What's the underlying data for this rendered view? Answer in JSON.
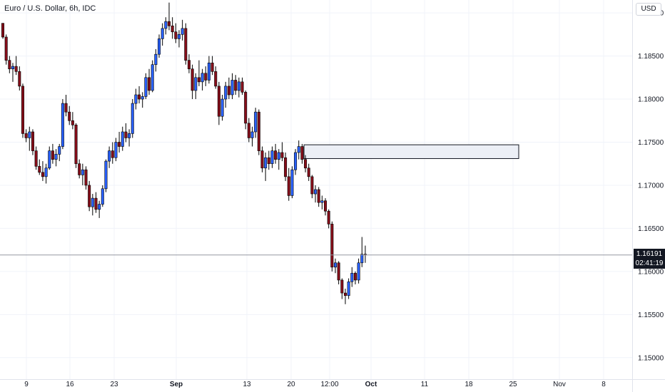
{
  "header": {
    "title": "Euro / U.S. Dollar, 6h, IDC",
    "currency": "USD"
  },
  "last_price": {
    "price": "1.16191",
    "countdown": "02:41:19"
  },
  "colors": {
    "up": "#2962ff",
    "down": "#880e1a",
    "wick": "#000000",
    "grid": "#f0f3fa",
    "zone_fill": "#eceff6",
    "zone_border": "#131722",
    "price_line": "#9598a1"
  },
  "chart_data": {
    "type": "candlestick",
    "title": "Euro / U.S. Dollar, 6h, IDC",
    "xlabel": "",
    "ylabel": "",
    "y_axis_side": "right",
    "ylim": [
      1.1475,
      1.1915
    ],
    "y_ticks": [
      1.15,
      1.155,
      1.16,
      1.165,
      1.17,
      1.175,
      1.18,
      1.185,
      1.19
    ],
    "y_tick_labels": [
      "1.15000",
      "1.15500",
      "1.16000",
      "1.16500",
      "1.17000",
      "1.17500",
      "1.18000",
      "1.18500",
      "1.19000"
    ],
    "x_tick_labels": [
      "9",
      "16",
      "23",
      "Sep",
      "13",
      "20",
      "12:00",
      "Oct",
      "11",
      "18",
      "25",
      "Nov",
      "8"
    ],
    "x_tick_bold": [
      "Sep",
      "Oct"
    ],
    "grid": true,
    "series": [
      {
        "values": [
          [
            1.1888,
            1.1885,
            1.187,
            1.1872
          ],
          [
            1.1872,
            1.1875,
            1.184,
            1.1845
          ],
          [
            1.1845,
            1.185,
            1.183,
            1.1835
          ],
          [
            1.1835,
            1.1842,
            1.182,
            1.1838
          ],
          [
            1.1838,
            1.185,
            1.1828,
            1.1832
          ],
          [
            1.1832,
            1.1838,
            1.181,
            1.1815
          ],
          [
            1.1815,
            1.1818,
            1.1755,
            1.176
          ],
          [
            1.176,
            1.1765,
            1.175,
            1.1755
          ],
          [
            1.1755,
            1.1768,
            1.174,
            1.1762
          ],
          [
            1.1762,
            1.1765,
            1.1735,
            1.174
          ],
          [
            1.174,
            1.1745,
            1.1718,
            1.1722
          ],
          [
            1.1722,
            1.173,
            1.1712,
            1.1715
          ],
          [
            1.1715,
            1.1728,
            1.1705,
            1.171
          ],
          [
            1.171,
            1.1725,
            1.1702,
            1.172
          ],
          [
            1.172,
            1.1745,
            1.1718,
            1.174
          ],
          [
            1.174,
            1.1748,
            1.1725,
            1.173
          ],
          [
            1.173,
            1.1742,
            1.1722,
            1.1736
          ],
          [
            1.1736,
            1.1748,
            1.1728,
            1.1745
          ],
          [
            1.1745,
            1.18,
            1.1742,
            1.1795
          ],
          [
            1.1795,
            1.1805,
            1.178,
            1.1785
          ],
          [
            1.1785,
            1.1792,
            1.177,
            1.1775
          ],
          [
            1.1775,
            1.1785,
            1.1765,
            1.177
          ],
          [
            1.177,
            1.1772,
            1.172,
            1.1725
          ],
          [
            1.1725,
            1.173,
            1.1708,
            1.1712
          ],
          [
            1.1712,
            1.1725,
            1.17,
            1.1718
          ],
          [
            1.1718,
            1.1722,
            1.1695,
            1.17
          ],
          [
            1.17,
            1.1705,
            1.167,
            1.1675
          ],
          [
            1.1675,
            1.169,
            1.1665,
            1.1685
          ],
          [
            1.1685,
            1.1692,
            1.1668,
            1.1672
          ],
          [
            1.1672,
            1.1682,
            1.1662,
            1.1678
          ],
          [
            1.1678,
            1.17,
            1.1675,
            1.1696
          ],
          [
            1.1696,
            1.173,
            1.1692,
            1.1728
          ],
          [
            1.1728,
            1.1745,
            1.172,
            1.174
          ],
          [
            1.174,
            1.175,
            1.1725,
            1.1732
          ],
          [
            1.1732,
            1.1755,
            1.1728,
            1.175
          ],
          [
            1.175,
            1.1762,
            1.1738,
            1.1745
          ],
          [
            1.1745,
            1.1768,
            1.174,
            1.1762
          ],
          [
            1.1762,
            1.1772,
            1.175,
            1.1755
          ],
          [
            1.1755,
            1.1765,
            1.1745,
            1.176
          ],
          [
            1.176,
            1.18,
            1.1755,
            1.1795
          ],
          [
            1.1795,
            1.1812,
            1.1788,
            1.1805
          ],
          [
            1.1805,
            1.1815,
            1.1795,
            1.18
          ],
          [
            1.18,
            1.1808,
            1.179,
            1.1803
          ],
          [
            1.1803,
            1.183,
            1.18,
            1.1825
          ],
          [
            1.1825,
            1.1835,
            1.1805,
            1.181
          ],
          [
            1.181,
            1.1845,
            1.1808,
            1.184
          ],
          [
            1.184,
            1.1858,
            1.1832,
            1.1852
          ],
          [
            1.1852,
            1.1875,
            1.1848,
            1.187
          ],
          [
            1.187,
            1.1888,
            1.1862,
            1.1882
          ],
          [
            1.1882,
            1.1895,
            1.1875,
            1.189
          ],
          [
            1.189,
            1.1912,
            1.188,
            1.1885
          ],
          [
            1.1885,
            1.1895,
            1.187,
            1.1878
          ],
          [
            1.1878,
            1.1888,
            1.1865,
            1.187
          ],
          [
            1.187,
            1.188,
            1.186,
            1.1875
          ],
          [
            1.1875,
            1.1892,
            1.1868,
            1.1882
          ],
          [
            1.1882,
            1.1888,
            1.184,
            1.1845
          ],
          [
            1.1845,
            1.1852,
            1.183,
            1.1835
          ],
          [
            1.1835,
            1.184,
            1.18,
            1.181
          ],
          [
            1.181,
            1.183,
            1.18,
            1.1825
          ],
          [
            1.1825,
            1.1845,
            1.1815,
            1.182
          ],
          [
            1.182,
            1.1835,
            1.181,
            1.183
          ],
          [
            1.183,
            1.1838,
            1.1815,
            1.1822
          ],
          [
            1.1822,
            1.185,
            1.1818,
            1.1842
          ],
          [
            1.1842,
            1.185,
            1.1828,
            1.1832
          ],
          [
            1.1832,
            1.1838,
            1.1812,
            1.1815
          ],
          [
            1.1815,
            1.182,
            1.177,
            1.178
          ],
          [
            1.178,
            1.1805,
            1.1775,
            1.18
          ],
          [
            1.18,
            1.182,
            1.179,
            1.1815
          ],
          [
            1.1815,
            1.1825,
            1.18,
            1.1805
          ],
          [
            1.1805,
            1.183,
            1.18,
            1.1822
          ],
          [
            1.1822,
            1.1828,
            1.1805,
            1.181
          ],
          [
            1.181,
            1.1825,
            1.1802,
            1.182
          ],
          [
            1.182,
            1.1825,
            1.1805,
            1.1808
          ],
          [
            1.1808,
            1.181,
            1.1765,
            1.1772
          ],
          [
            1.1772,
            1.1778,
            1.175,
            1.1755
          ],
          [
            1.1755,
            1.1768,
            1.1745,
            1.1762
          ],
          [
            1.1762,
            1.179,
            1.1755,
            1.1785
          ],
          [
            1.1785,
            1.1788,
            1.1735,
            1.174
          ],
          [
            1.174,
            1.1745,
            1.1715,
            1.172
          ],
          [
            1.172,
            1.1738,
            1.1705,
            1.1732
          ],
          [
            1.1732,
            1.174,
            1.1718,
            1.1725
          ],
          [
            1.1725,
            1.1745,
            1.172,
            1.174
          ],
          [
            1.174,
            1.1748,
            1.1725,
            1.173
          ],
          [
            1.173,
            1.1742,
            1.1718,
            1.1738
          ],
          [
            1.1738,
            1.175,
            1.1728,
            1.1732
          ],
          [
            1.1732,
            1.1738,
            1.1705,
            1.171
          ],
          [
            1.171,
            1.172,
            1.1682,
            1.1688
          ],
          [
            1.1688,
            1.1722,
            1.1685,
            1.1718
          ],
          [
            1.1718,
            1.1742,
            1.1712,
            1.1738
          ],
          [
            1.1738,
            1.1752,
            1.173,
            1.1745
          ],
          [
            1.1745,
            1.1748,
            1.1725,
            1.173
          ],
          [
            1.173,
            1.1735,
            1.1715,
            1.172
          ],
          [
            1.172,
            1.1725,
            1.1705,
            1.171
          ],
          [
            1.171,
            1.1712,
            1.1685,
            1.169
          ],
          [
            1.169,
            1.17,
            1.168,
            1.1695
          ],
          [
            1.1695,
            1.1698,
            1.1675,
            1.168
          ],
          [
            1.168,
            1.1688,
            1.1672,
            1.1682
          ],
          [
            1.1682,
            1.1685,
            1.1665,
            1.167
          ],
          [
            1.167,
            1.1672,
            1.165,
            1.1655
          ],
          [
            1.1655,
            1.1658,
            1.16,
            1.1605
          ],
          [
            1.1605,
            1.1615,
            1.1598,
            1.161
          ],
          [
            1.161,
            1.1612,
            1.1585,
            1.159
          ],
          [
            1.159,
            1.1592,
            1.1568,
            1.1575
          ],
          [
            1.1575,
            1.158,
            1.1562,
            1.1572
          ],
          [
            1.1572,
            1.1592,
            1.1568,
            1.1588
          ],
          [
            1.1588,
            1.1605,
            1.1582,
            1.1598
          ],
          [
            1.1598,
            1.16,
            1.1585,
            1.159
          ],
          [
            1.159,
            1.1615,
            1.1586,
            1.161
          ],
          [
            1.161,
            1.164,
            1.1605,
            1.162
          ],
          [
            1.162,
            1.163,
            1.161,
            1.16191
          ]
        ]
      }
    ],
    "zone": {
      "x_start_candle": 91,
      "x_end": "Oct 26",
      "y_top": 1.1747,
      "y_bottom": 1.1731
    }
  }
}
